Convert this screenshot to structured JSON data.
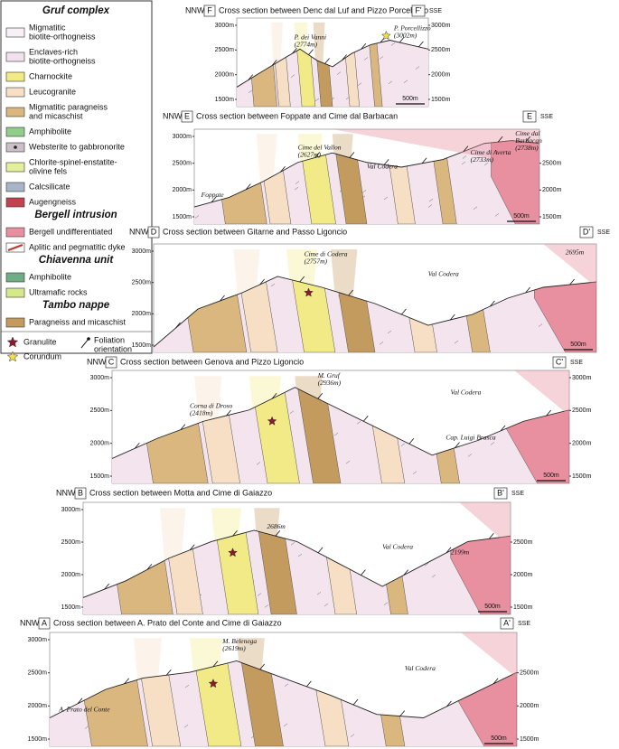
{
  "legend": {
    "groups": [
      {
        "title": "Gruf complex",
        "items": [
          {
            "label": [
              "Migmatitic",
              "biotite-orthogneiss"
            ],
            "color": "#f7f0f5"
          },
          {
            "label": [
              "Enclaves-rich",
              "biotite-orthogneiss"
            ],
            "color": "#f1e1ec"
          },
          {
            "label": [
              "Charnockite"
            ],
            "color": "#f1ea86"
          },
          {
            "label": [
              "Leucogranite"
            ],
            "color": "#f6dfc4"
          },
          {
            "label": [
              "Migmatitic paragneiss",
              "and micaschist"
            ],
            "color": "#dbb780"
          },
          {
            "label": [
              "Amphibolite"
            ],
            "color": "#91cd8b"
          },
          {
            "label": [
              "Websterite to gabbronorite"
            ],
            "color": "#cdbfc8"
          },
          {
            "label": [
              "Chlorite-spinel-enstatite-",
              "olivine fels"
            ],
            "color": "#e4ef9b"
          },
          {
            "label": [
              "Calcsilicate"
            ],
            "color": "#a8b5c8"
          },
          {
            "label": [
              "Augengneiss"
            ],
            "color": "#c2424f"
          }
        ]
      },
      {
        "title": "Bergell intrusion",
        "items": [
          {
            "label": [
              "Bergell undifferentiated"
            ],
            "color": "#e8909f"
          },
          {
            "label": [
              "Aplitic and pegmatitic dyke"
            ],
            "color": "#c0392b"
          }
        ]
      },
      {
        "title": "Chiavenna unit",
        "items": [
          {
            "label": [
              "Amphibolite"
            ],
            "color": "#6dad83"
          },
          {
            "label": [
              "Ultramafic rocks"
            ],
            "color": "#d6e88a"
          }
        ]
      },
      {
        "title": "Tambo nappe",
        "items": [
          {
            "label": [
              "Paragneiss and micaschist"
            ],
            "color": "#c49b5f"
          }
        ]
      }
    ],
    "symbols": [
      {
        "label": [
          "Granulite"
        ],
        "color": "#8b1a2a"
      },
      {
        "label": [
          "Corundum"
        ],
        "color": "#f2e04a"
      },
      {
        "label": [
          "Foliation",
          "orientation"
        ],
        "color": "#111111"
      }
    ]
  },
  "sections": [
    {
      "left_dir": "NNW",
      "letter": "F",
      "title": "Cross section between Denc dal Luf and Pizzo Porcellizzo",
      "letter_end": "F'",
      "right_dir": "SSE",
      "left_ticks": [
        "3000m",
        "2500m",
        "2000m",
        "1500m"
      ],
      "right_ticks": [
        "3000m",
        "2500m",
        "2000m",
        "1500m"
      ],
      "scale": "500m",
      "labels": [
        [
          "P. dei Vanni",
          "(2774m)"
        ],
        [
          "P. Porcellizzo",
          "(3002m)"
        ]
      ]
    },
    {
      "left_dir": "NNW",
      "letter": "E",
      "title": "Cross section between Foppate and Cime dal Barbacan",
      "letter_end": "E",
      "right_dir": "SSE",
      "left_ticks": [
        "3000m",
        "2500m",
        "2000m",
        "1500m"
      ],
      "right_ticks": [
        "2500m",
        "2000m",
        "1500m"
      ],
      "scale": "500m",
      "labels": [
        [
          "Cime del Vallon",
          "(2627m)"
        ],
        [
          "Val Codera"
        ],
        [
          "Cime di Averta",
          "(2733m)"
        ],
        [
          "Cime dal",
          "Barbacan",
          "(2738m)"
        ],
        [
          "Foppate"
        ]
      ]
    },
    {
      "left_dir": "NNW",
      "letter": "D",
      "title": "Cross section between Gitarne and Passo Ligoncio",
      "letter_end": "D'",
      "right_dir": "SSE",
      "left_ticks": [
        "3000m",
        "2500m",
        "2000m",
        "1500m"
      ],
      "right_ticks": [],
      "scale": "500m",
      "labels": [
        [
          "Cime di Codera",
          "(2757m)"
        ],
        [
          "Val Codera"
        ],
        [
          "2695m"
        ]
      ]
    },
    {
      "left_dir": "NNW",
      "letter": "C",
      "title": "Cross section between Genova and Pizzo Ligoncio",
      "letter_end": "C'",
      "right_dir": "SSE",
      "left_ticks": [
        "3000m",
        "2500m",
        "2000m",
        "1500m"
      ],
      "right_ticks": [
        "3000m",
        "2500m",
        "2000m",
        "1500m"
      ],
      "scale": "500m",
      "labels": [
        [
          "Corna di Droso",
          "(2418m)"
        ],
        [
          "M. Gruf",
          "(2936m)"
        ],
        [
          "Val Codera"
        ],
        [
          "Cap. Luigi Brasca"
        ]
      ]
    },
    {
      "left_dir": "NNW",
      "letter": "B",
      "title": "Cross section between Motta and Cime di Gaiazzo",
      "letter_end": "B'",
      "right_dir": "SSE",
      "left_ticks": [
        "3000m",
        "2500m",
        "2000m",
        "1500m"
      ],
      "right_ticks": [
        "2500m",
        "2000m",
        "1500m"
      ],
      "scale": "500m",
      "labels": [
        [
          "2686m"
        ],
        [
          "Val Codera"
        ],
        [
          "2199m"
        ]
      ]
    },
    {
      "left_dir": "NNW",
      "letter": "A",
      "title": "Cross section between A. Prato del Conte and Cime di Gaiazzo",
      "letter_end": "A'",
      "right_dir": "SSE",
      "left_ticks": [
        "3000m",
        "2500m",
        "2000m",
        "1500m"
      ],
      "right_ticks": [
        "2500m",
        "2000m",
        "1500m"
      ],
      "scale": "500m",
      "labels": [
        [
          "M. Belenega",
          "(2619m)"
        ],
        [
          "Val Codera"
        ],
        [
          "A. Prato del Conte"
        ]
      ]
    }
  ]
}
